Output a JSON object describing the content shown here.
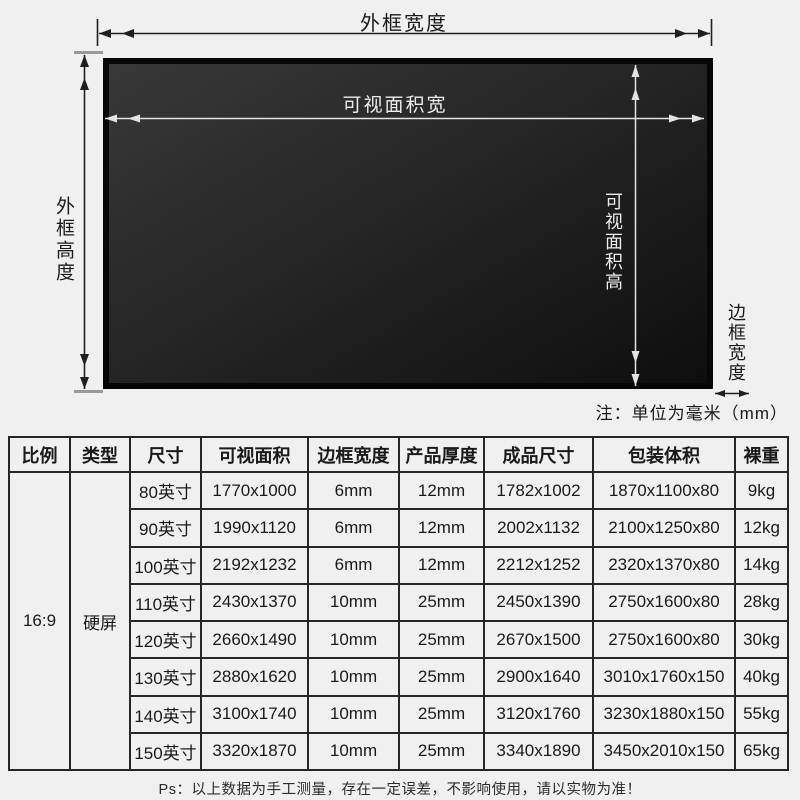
{
  "theme": {
    "pagebg": "#f0f0f0",
    "screenborder": "#070707",
    "screenfill1": "#383838",
    "screenfill2": "#0e0e0e",
    "dimdark": "#1f1f1f",
    "dimlight": "#e3e3e3",
    "tick": "#999999",
    "tableborder": "#262626",
    "textdark": "#1a1a1a",
    "textlight": "#ededed"
  },
  "diagram": {
    "labels": {
      "outer_width": "外框宽度",
      "outer_height": "外框高度",
      "visible_width": "可视面积宽",
      "visible_height": "可视面积高",
      "bezel_width": "边框宽度",
      "unit_note": "注：单位为毫米（mm）"
    }
  },
  "table": {
    "headers": [
      "比例",
      "类型",
      "尺寸",
      "可视面积",
      "边框宽度",
      "产品厚度",
      "成品尺寸",
      "包装体积",
      "裸重"
    ],
    "ratio": "16:9",
    "type": "硬屏",
    "rows": [
      [
        "80英寸",
        "1770x1000",
        "6mm",
        "12mm",
        "1782x1002",
        "1870x1100x80",
        "9kg"
      ],
      [
        "90英寸",
        "1990x1120",
        "6mm",
        "12mm",
        "2002x1132",
        "2100x1250x80",
        "12kg"
      ],
      [
        "100英寸",
        "2192x1232",
        "6mm",
        "12mm",
        "2212x1252",
        "2320x1370x80",
        "14kg"
      ],
      [
        "110英寸",
        "2430x1370",
        "10mm",
        "25mm",
        "2450x1390",
        "2750x1600x80",
        "28kg"
      ],
      [
        "120英寸",
        "2660x1490",
        "10mm",
        "25mm",
        "2670x1500",
        "2750x1600x80",
        "30kg"
      ],
      [
        "130英寸",
        "2880x1620",
        "10mm",
        "25mm",
        "2900x1640",
        "3010x1760x150",
        "40kg"
      ],
      [
        "140英寸",
        "3100x1740",
        "10mm",
        "25mm",
        "3120x1760",
        "3230x1880x150",
        "55kg"
      ],
      [
        "150英寸",
        "3320x1870",
        "10mm",
        "25mm",
        "3340x1890",
        "3450x2010x150",
        "65kg"
      ]
    ]
  },
  "footer": {
    "note": "Ps：以上数据为手工测量，存在一定误差，不影响使用，请以实物为准！"
  }
}
